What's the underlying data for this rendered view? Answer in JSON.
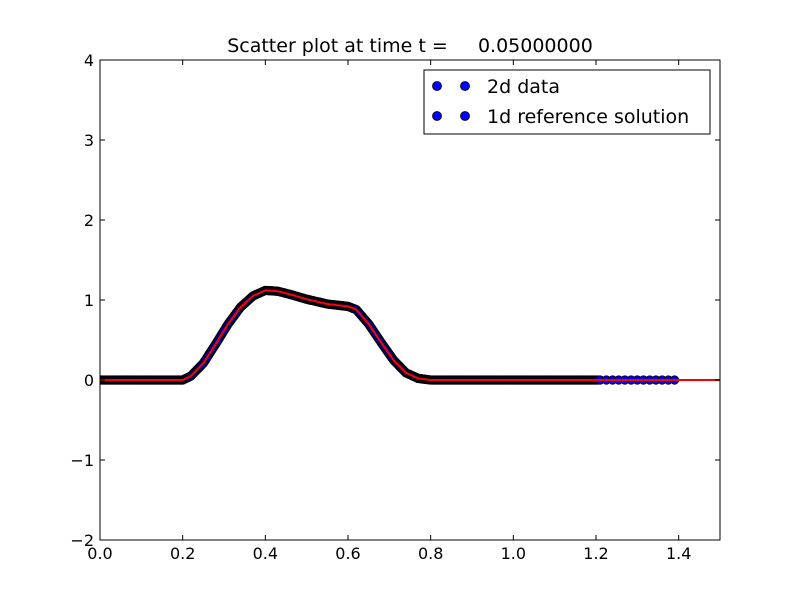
{
  "chart_data": {
    "type": "scatter",
    "title": "Scatter plot at time t =     0.05000000",
    "xlabel": "",
    "ylabel": "",
    "xlim": [
      0.0,
      1.5
    ],
    "ylim": [
      -2,
      4
    ],
    "x_ticks": [
      0.0,
      0.2,
      0.4,
      0.6,
      0.8,
      1.0,
      1.2,
      1.4
    ],
    "x_tick_labels": [
      "0.0",
      "0.2",
      "0.4",
      "0.6",
      "0.8",
      "1.0",
      "1.2",
      "1.4"
    ],
    "y_ticks": [
      -2,
      -1,
      0,
      1,
      2,
      3,
      4
    ],
    "y_tick_labels": [
      "−2",
      "−1",
      "0",
      "1",
      "2",
      "3",
      "4"
    ],
    "grid": false,
    "legend_position": "top-right",
    "legend": [
      "2d data",
      "1d reference solution"
    ],
    "series": [
      {
        "name": "2d data",
        "marker": "o",
        "color": "#0000ff",
        "edge_color": "#000000",
        "x_range": [
          0.0,
          1.39
        ],
        "profile_x": [
          0.0,
          0.2,
          0.22,
          0.25,
          0.28,
          0.31,
          0.34,
          0.37,
          0.4,
          0.43,
          0.46,
          0.5,
          0.55,
          0.6,
          0.62,
          0.65,
          0.68,
          0.71,
          0.74,
          0.77,
          0.8,
          1.0,
          1.2,
          1.39
        ],
        "profile_y": [
          0.0,
          0.0,
          0.05,
          0.21,
          0.45,
          0.7,
          0.91,
          1.05,
          1.12,
          1.11,
          1.07,
          1.01,
          0.95,
          0.92,
          0.88,
          0.7,
          0.47,
          0.25,
          0.09,
          0.02,
          0.0,
          0.0,
          0.0,
          0.0
        ],
        "sparse_tail_x": [
          1.21,
          1.225,
          1.24,
          1.255,
          1.27,
          1.285,
          1.3,
          1.315,
          1.33,
          1.345,
          1.36,
          1.375,
          1.39
        ]
      },
      {
        "name": "1d reference solution",
        "marker": "o",
        "color": "#0000ff",
        "edge_color": "#000000",
        "line_color": "#ff0000",
        "x_range": [
          0.0,
          1.5
        ],
        "profile_x": [
          0.0,
          0.2,
          0.22,
          0.25,
          0.28,
          0.31,
          0.34,
          0.37,
          0.4,
          0.43,
          0.46,
          0.5,
          0.55,
          0.6,
          0.62,
          0.65,
          0.68,
          0.71,
          0.74,
          0.77,
          0.8,
          1.0,
          1.2,
          1.5
        ],
        "profile_y": [
          0.0,
          0.0,
          0.05,
          0.21,
          0.45,
          0.7,
          0.91,
          1.05,
          1.12,
          1.11,
          1.07,
          1.01,
          0.95,
          0.92,
          0.88,
          0.7,
          0.47,
          0.25,
          0.09,
          0.02,
          0.0,
          0.0,
          0.0,
          0.0
        ]
      }
    ]
  }
}
